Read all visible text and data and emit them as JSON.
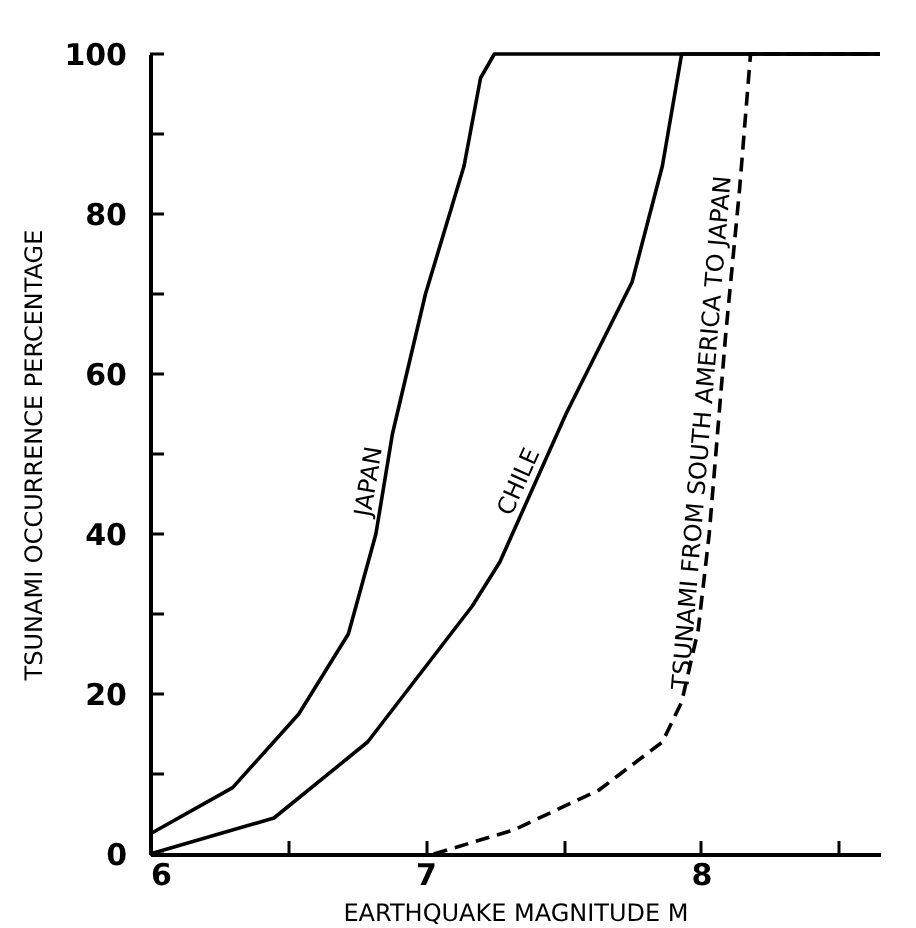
{
  "chart_data": {
    "type": "line",
    "xlabel": "EARTHQUAKE MAGNITUDE M",
    "ylabel": "TSUNAMI OCCURRENCE PERCENTAGE",
    "xlim": [
      6,
      8.65
    ],
    "ylim": [
      0,
      100
    ],
    "xticks": [
      6,
      {
        "value": 6.5,
        "label": null
      },
      7,
      {
        "value": 7.5,
        "label": null
      },
      8,
      {
        "value": 8.5,
        "label": null
      }
    ],
    "yticks": [
      0,
      {
        "value": 10,
        "label": null
      },
      20,
      {
        "value": 30,
        "label": null
      },
      40,
      {
        "value": 50,
        "label": null
      },
      60,
      {
        "value": 70,
        "label": null
      },
      80,
      {
        "value": 90,
        "label": null
      },
      100
    ],
    "marker": "none",
    "series": [
      {
        "name": "JAPAN",
        "color": "#000000",
        "line_style": "solid",
        "x": [
          6,
          6.3,
          6.54,
          6.72,
          6.82,
          6.88,
          7.0,
          7.14,
          7.2,
          7.25,
          8.65
        ],
        "values": [
          2.5,
          8.3,
          17.5,
          27.5,
          40,
          52.5,
          70,
          86,
          97,
          100,
          100
        ]
      },
      {
        "name": "CHILE",
        "color": "#000000",
        "line_style": "solid",
        "x": [
          6,
          6.45,
          6.79,
          7.17,
          7.27,
          7.51,
          7.75,
          7.86,
          7.93,
          8.65
        ],
        "values": [
          0,
          4.5,
          14,
          31,
          36.5,
          55,
          71.5,
          86,
          100,
          100
        ]
      },
      {
        "name": "TSUNAMI FROM SOUTH AMERICA TO JAPAN",
        "color": "#000000",
        "line_style": "dashed",
        "x": [
          7.03,
          7.32,
          7.63,
          7.86,
          7.93,
          7.99,
          8.03,
          8.09,
          8.14,
          8.18,
          8.65
        ],
        "values": [
          0,
          3,
          8,
          14,
          19,
          28,
          40,
          65,
          83,
          100,
          100
        ]
      }
    ]
  }
}
